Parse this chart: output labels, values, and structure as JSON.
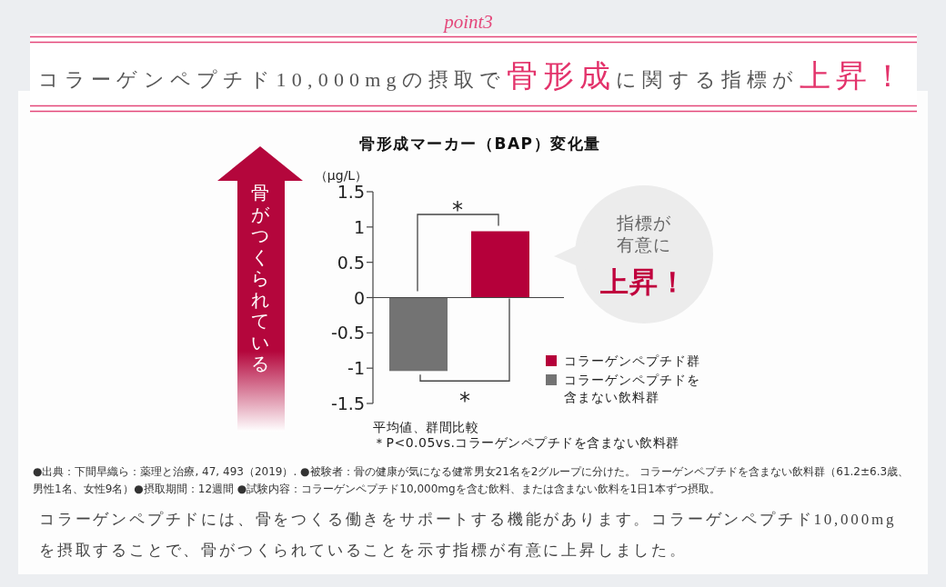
{
  "chart_data": {
    "type": "bar",
    "title": "コラーゲンペプチド10,000mgの摂取で**骨形成**に関する指標が**上昇！**",
    "subtitle": "骨形成マーカー（BAP）変化量",
    "ylabel": "（μg/L）",
    "categories": [
      null,
      null
    ],
    "series": [
      {
        "name": "コラーゲンペプチド群",
        "color": "#b5003a",
        "values": [
          null,
          0.94
        ]
      },
      {
        "name": "コラーゲンペプチドを含まない飲料群",
        "color": "#737373",
        "values": [
          -1.04,
          null
        ]
      }
    ],
    "ylim": [
      -1.5,
      1.5
    ],
    "yticks": [
      -1.5,
      -1,
      -0.5,
      0,
      0.5,
      1,
      1.5
    ],
    "tick_labels": "y",
    "legend": "bottom right",
    "annotations": [
      "point3",
      "骨がつくられている",
      "*",
      "*",
      "指標が有意に**上昇！**",
      "平均値、群間比較",
      "＊P<0.05vs.コラーゲンペプチドを含まない飲料群",
      "●出典：下間早織ら：薬理と治療, 47, 493（2019）. ●被験者：骨の健康が気になる健常男女21名を2グループに分けた。 コラーゲンペプチドを含まない飲料群（61.2±6.3歳、男性1名、女性9名）●摂取期間：12週間 ●試験内容：コラーゲンペプチド10,000mgを含む飲料、または含まない飲料を1日1本ずつ摂取。",
      "コラーゲンペプチドには、骨をつくる働きをサポートする機能があります。コラーゲンペプチド10,000mgを摂取することで、骨がつくられていることを示す指標が有意に上昇しました。"
    ]
  }
}
